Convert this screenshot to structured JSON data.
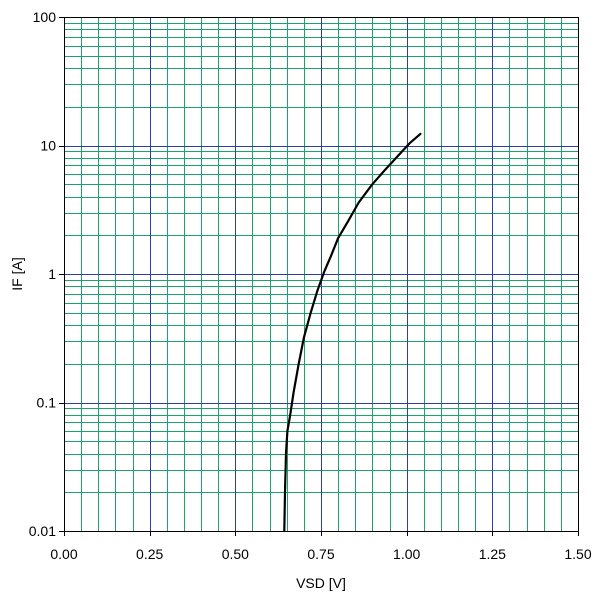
{
  "chart_data": {
    "type": "line",
    "xlabel": "VSD [V]",
    "ylabel": "IF [A]",
    "xlim": [
      0,
      1.5
    ],
    "ylim": [
      0.01,
      100
    ],
    "y_scale": "log",
    "grid": true,
    "x_tick_labels": [
      "0.00",
      "0.25",
      "0.50",
      "0.75",
      "1.00",
      "1.25",
      "1.50"
    ],
    "y_tick_labels": [
      "0.01",
      "0.1",
      "1",
      "10",
      "100"
    ],
    "colors": {
      "major_grid": "#2b3fa8",
      "minor_grid": "#1aa36a",
      "curve": "#000000",
      "frame": "#000000"
    },
    "series": [
      {
        "points": [
          {
            "x": 0.643,
            "y": 0.01
          },
          {
            "x": 0.645,
            "y": 0.02
          },
          {
            "x": 0.648,
            "y": 0.04
          },
          {
            "x": 0.652,
            "y": 0.06
          },
          {
            "x": 0.66,
            "y": 0.08
          },
          {
            "x": 0.67,
            "y": 0.12
          },
          {
            "x": 0.685,
            "y": 0.2
          },
          {
            "x": 0.7,
            "y": 0.32
          },
          {
            "x": 0.72,
            "y": 0.5
          },
          {
            "x": 0.74,
            "y": 0.75
          },
          {
            "x": 0.76,
            "y": 1.05
          },
          {
            "x": 0.78,
            "y": 1.4
          },
          {
            "x": 0.8,
            "y": 1.9
          },
          {
            "x": 0.83,
            "y": 2.6
          },
          {
            "x": 0.86,
            "y": 3.6
          },
          {
            "x": 0.9,
            "y": 5.0
          },
          {
            "x": 0.94,
            "y": 6.6
          },
          {
            "x": 0.98,
            "y": 8.6
          },
          {
            "x": 1.01,
            "y": 10.5
          },
          {
            "x": 1.04,
            "y": 12.3
          }
        ]
      }
    ]
  }
}
